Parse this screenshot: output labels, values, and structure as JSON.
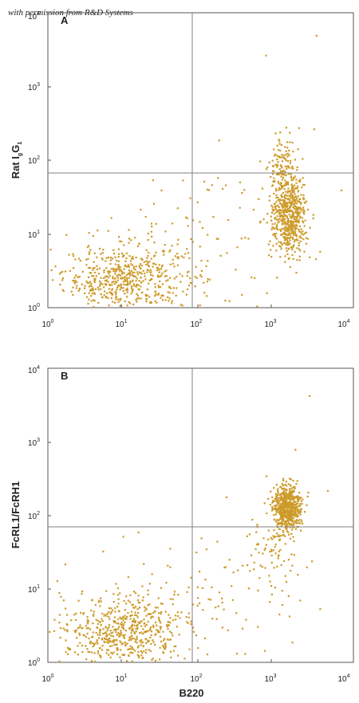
{
  "watermark": "with permission from R&D Systems",
  "colors": {
    "dots": "#cd9b2a",
    "gate": "#808080",
    "frame": "#555555"
  },
  "chart_data": [
    {
      "panel": "A",
      "type": "scatter",
      "xlabel": "",
      "ylabel": "Rat IgG1",
      "ylabel_parts": {
        "base": "Rat I",
        "sub1": "g",
        "mid": "G",
        "sub2": "1"
      },
      "x_scale": "log",
      "y_scale": "log",
      "xlim": [
        1,
        10000
      ],
      "ylim": [
        1,
        10000
      ],
      "x_ticks": [
        {
          "base": "10",
          "exp": "0"
        },
        {
          "base": "10",
          "exp": "1"
        },
        {
          "base": "10",
          "exp": "2"
        },
        {
          "base": "10",
          "exp": "3"
        },
        {
          "base": "10",
          "exp": "4"
        }
      ],
      "y_ticks": [
        {
          "base": "10",
          "exp": "0"
        },
        {
          "base": "10",
          "exp": "1"
        },
        {
          "base": "10",
          "exp": "2"
        },
        {
          "base": "10",
          "exp": "3"
        },
        {
          "base": "10",
          "exp": "4"
        }
      ],
      "quadrant_gate": {
        "x": 90,
        "y": 70
      },
      "clusters": [
        {
          "x_center": 10,
          "y_center": 2.5,
          "x_spread": 0.4,
          "y_spread": 0.22,
          "n": 520
        },
        {
          "x_center": 1400,
          "y_center": 18,
          "x_spread": 0.12,
          "y_spread": 0.28,
          "n": 560
        },
        {
          "x_center": 1200,
          "y_center": 90,
          "x_spread": 0.1,
          "y_spread": 0.22,
          "n": 110
        },
        {
          "x_center": 60,
          "y_center": 6,
          "x_spread": 0.7,
          "y_spread": 0.45,
          "n": 130
        }
      ],
      "outliers": [
        [
          3200,
          5000
        ],
        [
          700,
          2700
        ],
        [
          1900,
          280
        ],
        [
          3000,
          270
        ],
        [
          170,
          190
        ],
        [
          6800,
          40
        ],
        [
          120,
          10
        ],
        [
          30,
          40
        ]
      ]
    },
    {
      "panel": "B",
      "type": "scatter",
      "xlabel": "B220",
      "ylabel": "FcRL1/FcRH1",
      "x_scale": "log",
      "y_scale": "log",
      "xlim": [
        1,
        10000
      ],
      "ylim": [
        1,
        10000
      ],
      "x_ticks": [
        {
          "base": "10",
          "exp": "0"
        },
        {
          "base": "10",
          "exp": "1"
        },
        {
          "base": "10",
          "exp": "2"
        },
        {
          "base": "10",
          "exp": "3"
        },
        {
          "base": "10",
          "exp": "4"
        }
      ],
      "y_ticks": [
        {
          "base": "10",
          "exp": "0"
        },
        {
          "base": "10",
          "exp": "1"
        },
        {
          "base": "10",
          "exp": "2"
        },
        {
          "base": "10",
          "exp": "3"
        },
        {
          "base": "10",
          "exp": "4"
        }
      ],
      "quadrant_gate": {
        "x": 90,
        "y": 70
      },
      "clusters": [
        {
          "x_center": 9,
          "y_center": 2.5,
          "x_spread": 0.38,
          "y_spread": 0.25,
          "n": 540
        },
        {
          "x_center": 1300,
          "y_center": 130,
          "x_spread": 0.1,
          "y_spread": 0.15,
          "n": 600
        },
        {
          "x_center": 900,
          "y_center": 35,
          "x_spread": 0.2,
          "y_spread": 0.3,
          "n": 90
        },
        {
          "x_center": 60,
          "y_center": 6,
          "x_spread": 0.7,
          "y_spread": 0.45,
          "n": 130
        }
      ],
      "outliers": [
        [
          2600,
          4300
        ],
        [
          1700,
          800
        ],
        [
          4500,
          220
        ],
        [
          15,
          60
        ],
        [
          100,
          50
        ],
        [
          200,
          20
        ]
      ]
    }
  ]
}
